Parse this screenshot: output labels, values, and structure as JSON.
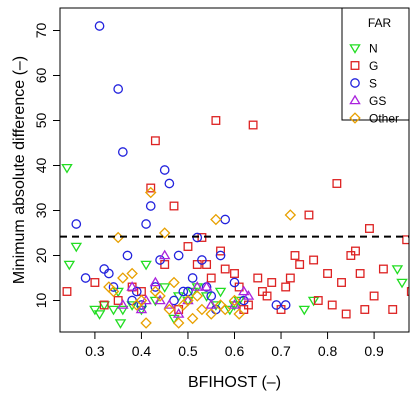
{
  "chart_data": {
    "type": "scatter",
    "xlabel": "BFIHOST (–)",
    "ylabel": "Minimum absolute difference (–)",
    "xlim": [
      0.225,
      0.975
    ],
    "ylim": [
      3,
      75
    ],
    "xticks": [
      0.3,
      0.4,
      0.5,
      0.6,
      0.7,
      0.8,
      0.9
    ],
    "xtick_labels": [
      "0.3",
      "0.4",
      "0.5",
      "0.6",
      "0.7",
      "0.8",
      "0.9"
    ],
    "yticks": [
      10,
      20,
      30,
      40,
      50,
      60,
      70
    ],
    "ytick_labels": [
      "10",
      "20",
      "30",
      "40",
      "50",
      "60",
      "70"
    ],
    "grid": false,
    "legend_position": "top-right",
    "legend_title": "FAR",
    "reference_line": {
      "y": 24.2,
      "style": "dashed"
    },
    "series": [
      {
        "name": "N",
        "marker": "triangle-down",
        "color": "#22dd22",
        "points": [
          [
            0.24,
            39.5
          ],
          [
            0.245,
            18
          ],
          [
            0.26,
            22
          ],
          [
            0.3,
            8
          ],
          [
            0.31,
            7
          ],
          [
            0.32,
            9
          ],
          [
            0.34,
            8
          ],
          [
            0.35,
            12
          ],
          [
            0.355,
            5
          ],
          [
            0.36,
            8
          ],
          [
            0.38,
            9
          ],
          [
            0.4,
            8
          ],
          [
            0.41,
            18
          ],
          [
            0.43,
            10
          ],
          [
            0.45,
            13
          ],
          [
            0.47,
            6
          ],
          [
            0.48,
            11
          ],
          [
            0.5,
            10
          ],
          [
            0.51,
            12
          ],
          [
            0.52,
            13
          ],
          [
            0.54,
            11
          ],
          [
            0.56,
            9
          ],
          [
            0.57,
            12
          ],
          [
            0.59,
            8
          ],
          [
            0.6,
            9
          ],
          [
            0.61,
            10
          ],
          [
            0.75,
            8
          ],
          [
            0.77,
            10
          ],
          [
            0.95,
            17
          ],
          [
            0.96,
            14
          ]
        ]
      },
      {
        "name": "G",
        "marker": "square",
        "color": "#dd2222",
        "points": [
          [
            0.24,
            12
          ],
          [
            0.3,
            14
          ],
          [
            0.32,
            9
          ],
          [
            0.35,
            10
          ],
          [
            0.38,
            13
          ],
          [
            0.4,
            12
          ],
          [
            0.42,
            35
          ],
          [
            0.43,
            45.5
          ],
          [
            0.45,
            18
          ],
          [
            0.47,
            31
          ],
          [
            0.48,
            8
          ],
          [
            0.5,
            22
          ],
          [
            0.52,
            18
          ],
          [
            0.53,
            24
          ],
          [
            0.54,
            18
          ],
          [
            0.55,
            15
          ],
          [
            0.56,
            50
          ],
          [
            0.57,
            21
          ],
          [
            0.58,
            17
          ],
          [
            0.6,
            16
          ],
          [
            0.61,
            13
          ],
          [
            0.62,
            8
          ],
          [
            0.63,
            9
          ],
          [
            0.64,
            49
          ],
          [
            0.65,
            15
          ],
          [
            0.66,
            12
          ],
          [
            0.67,
            11
          ],
          [
            0.68,
            14
          ],
          [
            0.7,
            8
          ],
          [
            0.71,
            13
          ],
          [
            0.72,
            15
          ],
          [
            0.73,
            20
          ],
          [
            0.74,
            18
          ],
          [
            0.76,
            29
          ],
          [
            0.77,
            19
          ],
          [
            0.78,
            10
          ],
          [
            0.8,
            16
          ],
          [
            0.81,
            9
          ],
          [
            0.82,
            36
          ],
          [
            0.83,
            14
          ],
          [
            0.84,
            7
          ],
          [
            0.85,
            20
          ],
          [
            0.86,
            21
          ],
          [
            0.87,
            16
          ],
          [
            0.88,
            8
          ],
          [
            0.89,
            26
          ],
          [
            0.9,
            11
          ],
          [
            0.92,
            17
          ],
          [
            0.94,
            8
          ],
          [
            0.97,
            23.5
          ],
          [
            0.98,
            12
          ]
        ]
      },
      {
        "name": "S",
        "marker": "circle",
        "color": "#2222dd",
        "points": [
          [
            0.26,
            27
          ],
          [
            0.28,
            15
          ],
          [
            0.31,
            71
          ],
          [
            0.32,
            17
          ],
          [
            0.33,
            16
          ],
          [
            0.34,
            13
          ],
          [
            0.35,
            57
          ],
          [
            0.36,
            43
          ],
          [
            0.37,
            20
          ],
          [
            0.38,
            10
          ],
          [
            0.39,
            12
          ],
          [
            0.4,
            9
          ],
          [
            0.41,
            27
          ],
          [
            0.42,
            31
          ],
          [
            0.43,
            13
          ],
          [
            0.44,
            19
          ],
          [
            0.45,
            39
          ],
          [
            0.46,
            36
          ],
          [
            0.47,
            10
          ],
          [
            0.48,
            20
          ],
          [
            0.49,
            12
          ],
          [
            0.5,
            12
          ],
          [
            0.51,
            15
          ],
          [
            0.52,
            24
          ],
          [
            0.53,
            19
          ],
          [
            0.54,
            13
          ],
          [
            0.55,
            11
          ],
          [
            0.56,
            8
          ],
          [
            0.57,
            20
          ],
          [
            0.58,
            28
          ],
          [
            0.6,
            14
          ],
          [
            0.62,
            10
          ],
          [
            0.69,
            9
          ],
          [
            0.71,
            9
          ]
        ]
      },
      {
        "name": "GS",
        "marker": "triangle-up",
        "color": "#aa22dd",
        "points": [
          [
            0.36,
            9
          ],
          [
            0.38,
            13
          ],
          [
            0.4,
            8
          ],
          [
            0.41,
            10
          ],
          [
            0.43,
            14
          ],
          [
            0.44,
            10
          ],
          [
            0.45,
            20
          ],
          [
            0.46,
            9
          ],
          [
            0.48,
            7
          ],
          [
            0.5,
            10
          ],
          [
            0.52,
            13
          ],
          [
            0.54,
            13
          ],
          [
            0.55,
            9
          ],
          [
            0.6,
            9
          ],
          [
            0.62,
            12
          ],
          [
            0.63,
            11
          ]
        ]
      },
      {
        "name": "Other",
        "marker": "diamond",
        "color": "#e8a000",
        "points": [
          [
            0.33,
            13
          ],
          [
            0.34,
            12
          ],
          [
            0.35,
            24
          ],
          [
            0.36,
            15
          ],
          [
            0.38,
            16
          ],
          [
            0.39,
            9
          ],
          [
            0.4,
            10
          ],
          [
            0.41,
            5
          ],
          [
            0.42,
            34
          ],
          [
            0.43,
            12
          ],
          [
            0.44,
            11
          ],
          [
            0.45,
            25
          ],
          [
            0.46,
            8
          ],
          [
            0.47,
            14
          ],
          [
            0.48,
            5
          ],
          [
            0.49,
            9
          ],
          [
            0.5,
            10
          ],
          [
            0.51,
            6
          ],
          [
            0.52,
            11
          ],
          [
            0.53,
            8
          ],
          [
            0.55,
            7
          ],
          [
            0.56,
            28
          ],
          [
            0.57,
            9
          ],
          [
            0.58,
            8
          ],
          [
            0.6,
            10
          ],
          [
            0.61,
            7
          ],
          [
            0.72,
            29
          ]
        ]
      }
    ]
  }
}
